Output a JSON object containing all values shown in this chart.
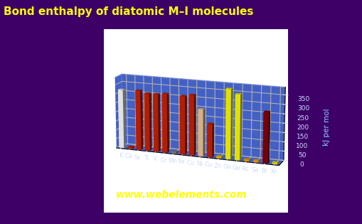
{
  "title": "Bond enthalpy of diatomic M–I molecules",
  "ylabel": "kJ per mol",
  "website": "www.webelements.com",
  "background_color": "#3d0066",
  "plot_bg_color": "#2244bb",
  "elements": [
    "K",
    "Ca",
    "Sc",
    "Ti",
    "V",
    "Cr",
    "Mn",
    "Fe",
    "Co",
    "Ni",
    "Cu",
    "Zn",
    "Ga",
    "Ge",
    "As",
    "Se",
    "Br",
    "Kr"
  ],
  "values": [
    322,
    10,
    326,
    314,
    314,
    320,
    10,
    317,
    327,
    255,
    180,
    10,
    376,
    352,
    10,
    10,
    272,
    10
  ],
  "colors": [
    "#ffffff",
    "#cc2200",
    "#cc2200",
    "#cc2200",
    "#cc2200",
    "#cc2200",
    "#888888",
    "#cc2200",
    "#cc2200",
    "#f0c896",
    "#cc2200",
    "#ffcc00",
    "#ffff00",
    "#ffff00",
    "#ffaa00",
    "#ffaa00",
    "#880000",
    "#ffee00"
  ],
  "dot_colors": [
    "#ffffff",
    "#cc2200",
    "#cc2200",
    "#cc2200",
    "#cc2200",
    "#cc2200",
    "#888888",
    "#cc2200",
    "#cc2200",
    "#f0c896",
    "#cc2200",
    "#ffcc00",
    "#ffff00",
    "#ffff00",
    "#ffaa00",
    "#ffaa00",
    "#880000",
    "#ffee00"
  ],
  "ylim": [
    0,
    390
  ],
  "yticks": [
    0,
    50,
    100,
    150,
    200,
    250,
    300,
    350
  ],
  "title_color": "#ffff00",
  "axis_label_color": "#88ccff",
  "tick_label_color": "#ccddff",
  "website_color": "#ffff00",
  "grid_color": "#7788cc",
  "wall_color": "#2244bb"
}
